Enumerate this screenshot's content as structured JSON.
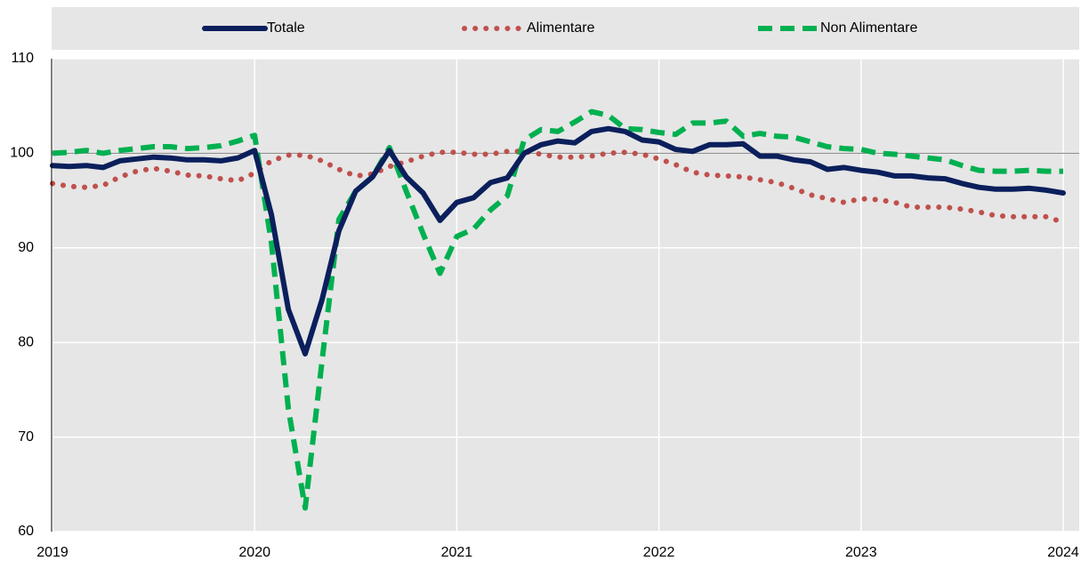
{
  "chart_data": {
    "type": "line",
    "categories": [
      "2019",
      null,
      null,
      null,
      null,
      null,
      null,
      null,
      null,
      null,
      null,
      null,
      "2020",
      null,
      null,
      null,
      null,
      null,
      null,
      null,
      null,
      null,
      null,
      null,
      "2021",
      null,
      null,
      null,
      null,
      null,
      null,
      null,
      null,
      null,
      null,
      null,
      "2022",
      null,
      null,
      null,
      null,
      null,
      null,
      null,
      null,
      null,
      null,
      null,
      "2023",
      null,
      null,
      null,
      null,
      null,
      null,
      null,
      null,
      null,
      null,
      null,
      "2024"
    ],
    "series": [
      {
        "name": "Totale",
        "color": "#0b1f5c",
        "dash": "solid",
        "values": [
          98.7,
          98.6,
          98.7,
          98.5,
          99.2,
          99.4,
          99.6,
          99.5,
          99.3,
          99.3,
          99.2,
          99.5,
          100.3,
          93.5,
          83.5,
          78.8,
          84.5,
          91.8,
          96.0,
          97.5,
          100.3,
          97.5,
          95.8,
          92.9,
          94.8,
          95.3,
          96.9,
          97.4,
          100.0,
          100.9,
          101.3,
          101.1,
          102.3,
          102.6,
          102.3,
          101.4,
          101.2,
          100.4,
          100.2,
          100.9,
          100.9,
          101.0,
          99.7,
          99.7,
          99.3,
          99.1,
          98.3,
          98.5,
          98.2,
          98.0,
          97.6,
          97.6,
          97.4,
          97.3,
          96.8,
          96.4,
          96.2,
          96.2,
          96.3,
          96.1,
          95.8
        ]
      },
      {
        "name": "Alimentare",
        "color": "#c0504d",
        "dash": "dotted",
        "values": [
          96.8,
          96.5,
          96.4,
          96.6,
          97.5,
          98.1,
          98.4,
          98.1,
          97.7,
          97.6,
          97.3,
          97.1,
          97.9,
          99.2,
          99.8,
          99.8,
          99.2,
          98.3,
          97.6,
          97.8,
          98.6,
          99.1,
          99.7,
          100.1,
          100.1,
          99.9,
          99.9,
          100.2,
          100.2,
          99.9,
          99.6,
          99.6,
          99.7,
          100.0,
          100.1,
          99.9,
          99.4,
          98.8,
          98.0,
          97.7,
          97.6,
          97.5,
          97.2,
          96.9,
          96.3,
          95.6,
          95.2,
          94.8,
          95.2,
          95.1,
          94.8,
          94.3,
          94.3,
          94.3,
          94.1,
          93.8,
          93.4,
          93.3,
          93.3,
          93.3,
          92.7
        ]
      },
      {
        "name": "Non Alimentare",
        "color": "#00b050",
        "dash": "dashed",
        "values": [
          100.0,
          100.1,
          100.3,
          100.0,
          100.3,
          100.5,
          100.7,
          100.7,
          100.5,
          100.6,
          100.8,
          101.3,
          101.9,
          90.5,
          73.0,
          62.5,
          78.0,
          93.0,
          96.0,
          97.5,
          100.6,
          96.0,
          91.5,
          87.3,
          91.2,
          92.0,
          94.0,
          95.5,
          101.4,
          102.5,
          102.3,
          103.3,
          104.4,
          104.0,
          102.6,
          102.5,
          102.2,
          102.0,
          103.2,
          103.2,
          103.4,
          101.8,
          102.1,
          101.8,
          101.7,
          101.2,
          100.7,
          100.5,
          100.4,
          100.0,
          99.9,
          99.7,
          99.5,
          99.3,
          98.7,
          98.2,
          98.1,
          98.1,
          98.2,
          98.1,
          98.1
        ]
      }
    ],
    "ylim": [
      60,
      110
    ],
    "yticks": [
      60,
      70,
      80,
      90,
      100,
      110
    ],
    "reference_line": 100,
    "grid": true,
    "legend": "top"
  }
}
